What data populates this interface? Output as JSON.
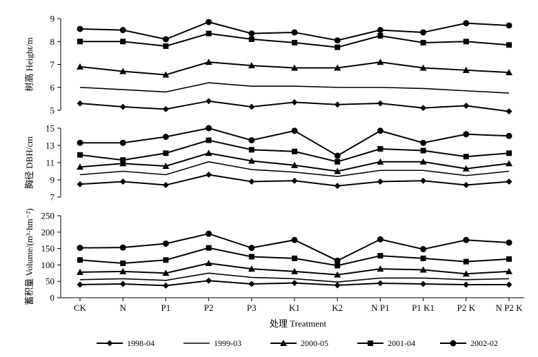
{
  "chart_data": {
    "type": "line",
    "categories": [
      "CK",
      "N",
      "P1",
      "P2",
      "P3",
      "K1",
      "K2",
      "N P1",
      "P1 K1",
      "P2 K",
      "N P2 K"
    ],
    "xlabel": "处理 Treatment",
    "legend": {
      "placement": "bottom",
      "entries": [
        {
          "name": "1998-04",
          "marker": "diamond"
        },
        {
          "name": "1999-03",
          "marker": "dash"
        },
        {
          "name": "2000-05",
          "marker": "triangle"
        },
        {
          "name": "2001-04",
          "marker": "square"
        },
        {
          "name": "2002-02",
          "marker": "circle"
        }
      ]
    },
    "panels": [
      {
        "key": "height",
        "ylabel": "树高 Height/m",
        "ylim": [
          5,
          9
        ],
        "yticks": [
          "5",
          "6",
          "7",
          "8",
          "9"
        ],
        "series": [
          {
            "name": "1998-04",
            "marker": "diamond",
            "values": [
              5.3,
              5.15,
              5.05,
              5.4,
              5.15,
              5.35,
              5.25,
              5.3,
              5.1,
              5.2,
              4.95
            ]
          },
          {
            "name": "1999-03",
            "marker": "dash",
            "values": [
              6.0,
              5.9,
              5.8,
              6.2,
              6.05,
              6.05,
              6.0,
              6.0,
              5.95,
              5.85,
              5.75
            ]
          },
          {
            "name": "2000-05",
            "marker": "triangle",
            "values": [
              6.9,
              6.7,
              6.55,
              7.1,
              6.95,
              6.85,
              6.85,
              7.1,
              6.85,
              6.75,
              6.65
            ]
          },
          {
            "name": "2001-04",
            "marker": "square",
            "values": [
              8.0,
              8.0,
              7.8,
              8.35,
              8.1,
              7.95,
              7.75,
              8.25,
              7.95,
              8.0,
              7.85
            ]
          },
          {
            "name": "2002-02",
            "marker": "circle",
            "values": [
              8.55,
              8.5,
              8.1,
              8.85,
              8.35,
              8.4,
              8.05,
              8.5,
              8.4,
              8.8,
              8.7
            ]
          }
        ]
      },
      {
        "key": "dbh",
        "ylabel": "胸径 DBH/cm",
        "ylim": [
          7,
          15
        ],
        "yticks": [
          "7",
          "9",
          "11",
          "13",
          "15"
        ],
        "series": [
          {
            "name": "1998-04",
            "marker": "diamond",
            "values": [
              8.5,
              8.8,
              8.4,
              9.6,
              8.8,
              8.9,
              8.3,
              8.8,
              8.9,
              8.4,
              8.8
            ]
          },
          {
            "name": "1999-03",
            "marker": "dash",
            "values": [
              9.6,
              10.0,
              9.6,
              11.1,
              10.2,
              9.9,
              9.4,
              10.1,
              10.1,
              9.5,
              10.0
            ]
          },
          {
            "name": "2000-05",
            "marker": "triangle",
            "values": [
              10.5,
              10.9,
              10.6,
              12.1,
              11.2,
              10.7,
              10.0,
              11.1,
              11.1,
              10.3,
              10.9
            ]
          },
          {
            "name": "2001-04",
            "marker": "square",
            "values": [
              11.9,
              11.3,
              12.1,
              13.6,
              12.5,
              12.3,
              11.1,
              12.6,
              12.4,
              11.7,
              12.1
            ]
          },
          {
            "name": "2002-02",
            "marker": "circle",
            "values": [
              13.3,
              13.3,
              14.0,
              15.0,
              13.6,
              14.7,
              11.8,
              14.7,
              13.3,
              14.3,
              14.1
            ]
          }
        ]
      },
      {
        "key": "volume",
        "ylabel": "蓄积量 Volume/(m³·hm⁻²)",
        "ylim": [
          0,
          250
        ],
        "yticks": [
          "0",
          "50",
          "100",
          "150",
          "200",
          "250"
        ],
        "series": [
          {
            "name": "1998-04",
            "marker": "diamond",
            "values": [
              40,
              42,
              37,
              52,
              42,
              45,
              38,
              44,
              42,
              40,
              40
            ]
          },
          {
            "name": "1999-03",
            "marker": "dash",
            "values": [
              55,
              58,
              53,
              75,
              62,
              58,
              48,
              60,
              60,
              55,
              58
            ]
          },
          {
            "name": "2000-05",
            "marker": "triangle",
            "values": [
              78,
              80,
              75,
              105,
              88,
              80,
              70,
              88,
              85,
              73,
              80
            ]
          },
          {
            "name": "2001-04",
            "marker": "square",
            "values": [
              115,
              105,
              115,
              152,
              125,
              120,
              98,
              128,
              120,
              110,
              118
            ]
          },
          {
            "name": "2002-02",
            "marker": "circle",
            "values": [
              152,
              153,
              165,
              195,
              152,
              176,
              113,
              178,
              148,
              176,
              168
            ]
          }
        ]
      }
    ]
  }
}
